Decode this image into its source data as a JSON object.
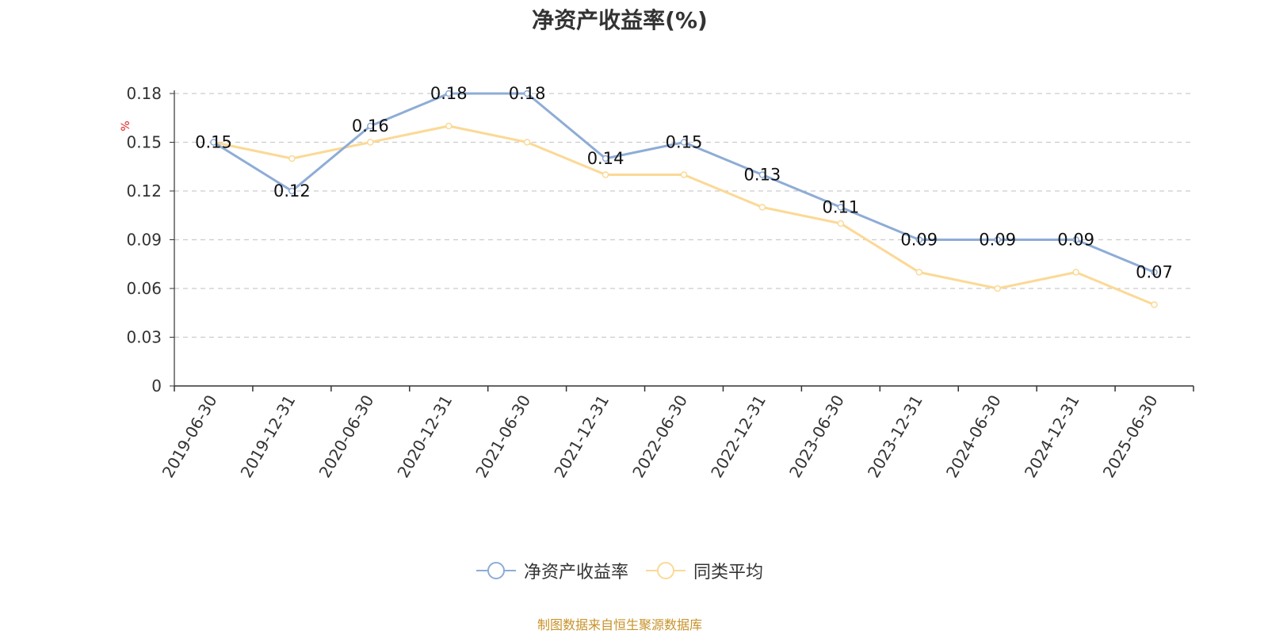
{
  "chart_data": {
    "type": "line",
    "title": "净资产收益率(%)",
    "ylabel": "%",
    "xlabel": "",
    "categories": [
      "2019-06-30",
      "2019-12-31",
      "2020-06-30",
      "2020-12-31",
      "2021-06-30",
      "2021-12-31",
      "2022-06-30",
      "2022-12-31",
      "2023-06-30",
      "2023-12-31",
      "2024-06-30",
      "2024-12-31",
      "2025-06-30"
    ],
    "series": [
      {
        "name": "净资产收益率",
        "color": "#8eacd6",
        "show_labels": true,
        "values": [
          0.15,
          0.12,
          0.16,
          0.18,
          0.18,
          0.14,
          0.15,
          0.13,
          0.11,
          0.09,
          0.09,
          0.09,
          0.07
        ]
      },
      {
        "name": "同类平均",
        "color": "#fbd996",
        "show_labels": false,
        "values": [
          0.15,
          0.14,
          0.15,
          0.16,
          0.15,
          0.13,
          0.13,
          0.11,
          0.1,
          0.07,
          0.06,
          0.07,
          0.05
        ]
      }
    ],
    "ylim": [
      0,
      0.18
    ],
    "yticks": [
      "0",
      "0.03",
      "0.06",
      "0.09",
      "0.12",
      "0.15",
      "0.18"
    ],
    "grid": true,
    "legend_position": "bottom"
  },
  "footer": {
    "source": "制图数据来自恒生聚源数据库"
  }
}
